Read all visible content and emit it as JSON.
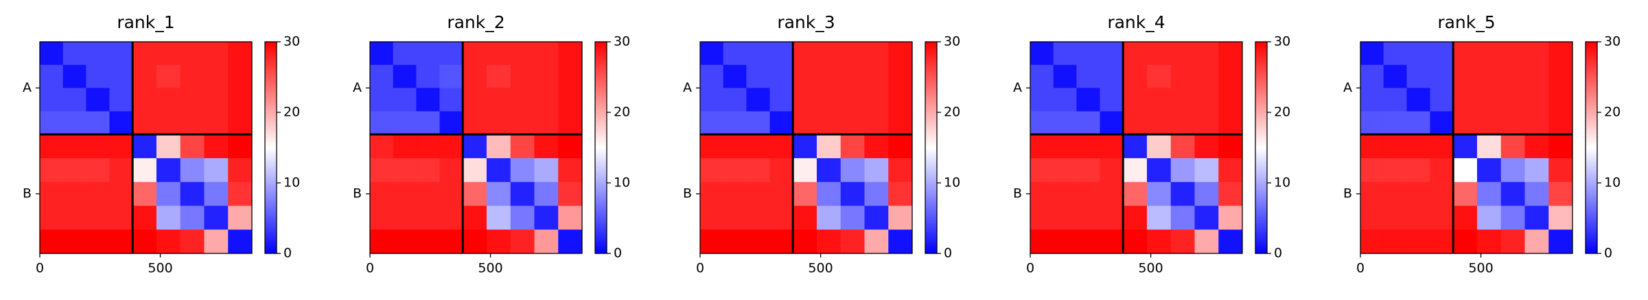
{
  "chart_data": [
    {
      "type": "heatmap",
      "title": "rank_1",
      "colormap": "bwr",
      "clim": [
        0,
        30
      ],
      "cticks": [
        0,
        10,
        20,
        30
      ],
      "xlim": [
        0,
        880
      ],
      "ylim": [
        0,
        880
      ],
      "y_inverted": true,
      "xticks": [
        0,
        500
      ],
      "yticks": [
        {
          "value": 192,
          "label": "A"
        },
        {
          "value": 632,
          "label": "B"
        }
      ],
      "chain_breaks": [
        385
      ],
      "bins": [
        0,
        96,
        192,
        289,
        385,
        484,
        583,
        682,
        781,
        880
      ],
      "z": [
        [
          1,
          4,
          4,
          4,
          28,
          28,
          28,
          28,
          29
        ],
        [
          4,
          1,
          4,
          4,
          28,
          27,
          28,
          28,
          29
        ],
        [
          4,
          4,
          1,
          4,
          28,
          28,
          28,
          28,
          29
        ],
        [
          5,
          5,
          5,
          1,
          28,
          28,
          28,
          28,
          29
        ],
        [
          29,
          29,
          29,
          29,
          2,
          18,
          26,
          29,
          30
        ],
        [
          27,
          27,
          27,
          28,
          16,
          2,
          8,
          10,
          28
        ],
        [
          28,
          28,
          28,
          28,
          24,
          7,
          2,
          7,
          27
        ],
        [
          28,
          28,
          28,
          28,
          29,
          10,
          7,
          2,
          20
        ],
        [
          30,
          30,
          30,
          30,
          30,
          29,
          28,
          20,
          1
        ]
      ]
    },
    {
      "type": "heatmap",
      "title": "rank_2",
      "colormap": "bwr",
      "clim": [
        0,
        30
      ],
      "cticks": [
        0,
        10,
        20,
        30
      ],
      "xlim": [
        0,
        880
      ],
      "ylim": [
        0,
        880
      ],
      "y_inverted": true,
      "xticks": [
        0,
        500
      ],
      "yticks": [
        {
          "value": 192,
          "label": "A"
        },
        {
          "value": 632,
          "label": "B"
        }
      ],
      "chain_breaks": [
        385
      ],
      "bins": [
        0,
        96,
        192,
        289,
        385,
        484,
        583,
        682,
        781,
        880
      ],
      "z": [
        [
          1,
          4,
          4,
          4,
          28,
          28,
          28,
          28,
          29
        ],
        [
          4,
          1,
          4,
          5,
          28,
          27,
          28,
          28,
          29
        ],
        [
          4,
          4,
          1,
          4,
          28,
          28,
          28,
          28,
          29
        ],
        [
          5,
          5,
          5,
          1,
          28,
          28,
          28,
          28,
          29
        ],
        [
          28,
          29,
          29,
          29,
          2,
          19,
          26,
          29,
          30
        ],
        [
          27,
          27,
          27,
          28,
          17,
          2,
          8,
          10,
          28
        ],
        [
          28,
          28,
          28,
          28,
          24,
          8,
          2,
          7,
          27
        ],
        [
          28,
          28,
          28,
          28,
          29,
          11,
          7,
          2,
          21
        ],
        [
          30,
          30,
          30,
          30,
          30,
          29,
          28,
          21,
          1
        ]
      ]
    },
    {
      "type": "heatmap",
      "title": "rank_3",
      "colormap": "bwr",
      "clim": [
        0,
        30
      ],
      "cticks": [
        0,
        10,
        20,
        30
      ],
      "xlim": [
        0,
        880
      ],
      "ylim": [
        0,
        880
      ],
      "y_inverted": true,
      "xticks": [
        0,
        500
      ],
      "yticks": [
        {
          "value": 192,
          "label": "A"
        },
        {
          "value": 632,
          "label": "B"
        }
      ],
      "chain_breaks": [
        385
      ],
      "bins": [
        0,
        96,
        192,
        289,
        385,
        484,
        583,
        682,
        781,
        880
      ],
      "z": [
        [
          1,
          4,
          4,
          4,
          28,
          28,
          28,
          28,
          29
        ],
        [
          4,
          1,
          4,
          4,
          28,
          28,
          28,
          28,
          29
        ],
        [
          4,
          4,
          1,
          4,
          28,
          28,
          28,
          28,
          29
        ],
        [
          5,
          5,
          5,
          1,
          28,
          28,
          28,
          28,
          29
        ],
        [
          29,
          29,
          29,
          29,
          2,
          18,
          26,
          29,
          30
        ],
        [
          27,
          27,
          27,
          28,
          16,
          2,
          8,
          10,
          28
        ],
        [
          28,
          28,
          28,
          28,
          24,
          7,
          2,
          7,
          27
        ],
        [
          28,
          28,
          28,
          28,
          29,
          10,
          7,
          2,
          20
        ],
        [
          30,
          30,
          30,
          30,
          30,
          29,
          28,
          20,
          1
        ]
      ]
    },
    {
      "type": "heatmap",
      "title": "rank_4",
      "colormap": "bwr",
      "clim": [
        0,
        30
      ],
      "cticks": [
        0,
        10,
        20,
        30
      ],
      "xlim": [
        0,
        880
      ],
      "ylim": [
        0,
        880
      ],
      "y_inverted": true,
      "xticks": [
        0,
        500
      ],
      "yticks": [
        {
          "value": 192,
          "label": "A"
        },
        {
          "value": 632,
          "label": "B"
        }
      ],
      "chain_breaks": [
        385
      ],
      "bins": [
        0,
        96,
        192,
        289,
        385,
        484,
        583,
        682,
        781,
        880
      ],
      "z": [
        [
          1,
          4,
          4,
          4,
          28,
          28,
          28,
          28,
          29
        ],
        [
          4,
          1,
          4,
          4,
          28,
          27,
          28,
          28,
          29
        ],
        [
          4,
          4,
          1,
          4,
          28,
          28,
          28,
          28,
          29
        ],
        [
          5,
          5,
          5,
          1,
          28,
          28,
          28,
          28,
          29
        ],
        [
          29,
          29,
          29,
          29,
          2,
          18,
          26,
          29,
          30
        ],
        [
          27,
          27,
          27,
          28,
          16,
          2,
          9,
          11,
          28
        ],
        [
          28,
          28,
          28,
          28,
          24,
          8,
          2,
          7,
          27
        ],
        [
          28,
          28,
          28,
          28,
          29,
          11,
          7,
          2,
          20
        ],
        [
          30,
          30,
          30,
          30,
          30,
          29,
          28,
          20,
          1
        ]
      ]
    },
    {
      "type": "heatmap",
      "title": "rank_5",
      "colormap": "bwr",
      "clim": [
        0,
        30
      ],
      "cticks": [
        0,
        10,
        20,
        30
      ],
      "xlim": [
        0,
        880
      ],
      "ylim": [
        0,
        880
      ],
      "y_inverted": true,
      "xticks": [
        0,
        500
      ],
      "yticks": [
        {
          "value": 192,
          "label": "A"
        },
        {
          "value": 632,
          "label": "B"
        }
      ],
      "chain_breaks": [
        385
      ],
      "bins": [
        0,
        96,
        192,
        289,
        385,
        484,
        583,
        682,
        781,
        880
      ],
      "z": [
        [
          1,
          4,
          4,
          4,
          28,
          28,
          28,
          28,
          29
        ],
        [
          4,
          1,
          4,
          4,
          28,
          28,
          28,
          28,
          29
        ],
        [
          4,
          4,
          1,
          4,
          28,
          28,
          28,
          28,
          29
        ],
        [
          5,
          5,
          5,
          1,
          28,
          28,
          28,
          28,
          29
        ],
        [
          29,
          29,
          29,
          29,
          2,
          17,
          26,
          29,
          30
        ],
        [
          27,
          27,
          27,
          28,
          15,
          2,
          8,
          10,
          28
        ],
        [
          28,
          28,
          28,
          28,
          24,
          7,
          2,
          7,
          26
        ],
        [
          28,
          28,
          28,
          28,
          29,
          10,
          7,
          2,
          19
        ],
        [
          29,
          29,
          29,
          29,
          30,
          29,
          28,
          20,
          1
        ]
      ]
    }
  ]
}
